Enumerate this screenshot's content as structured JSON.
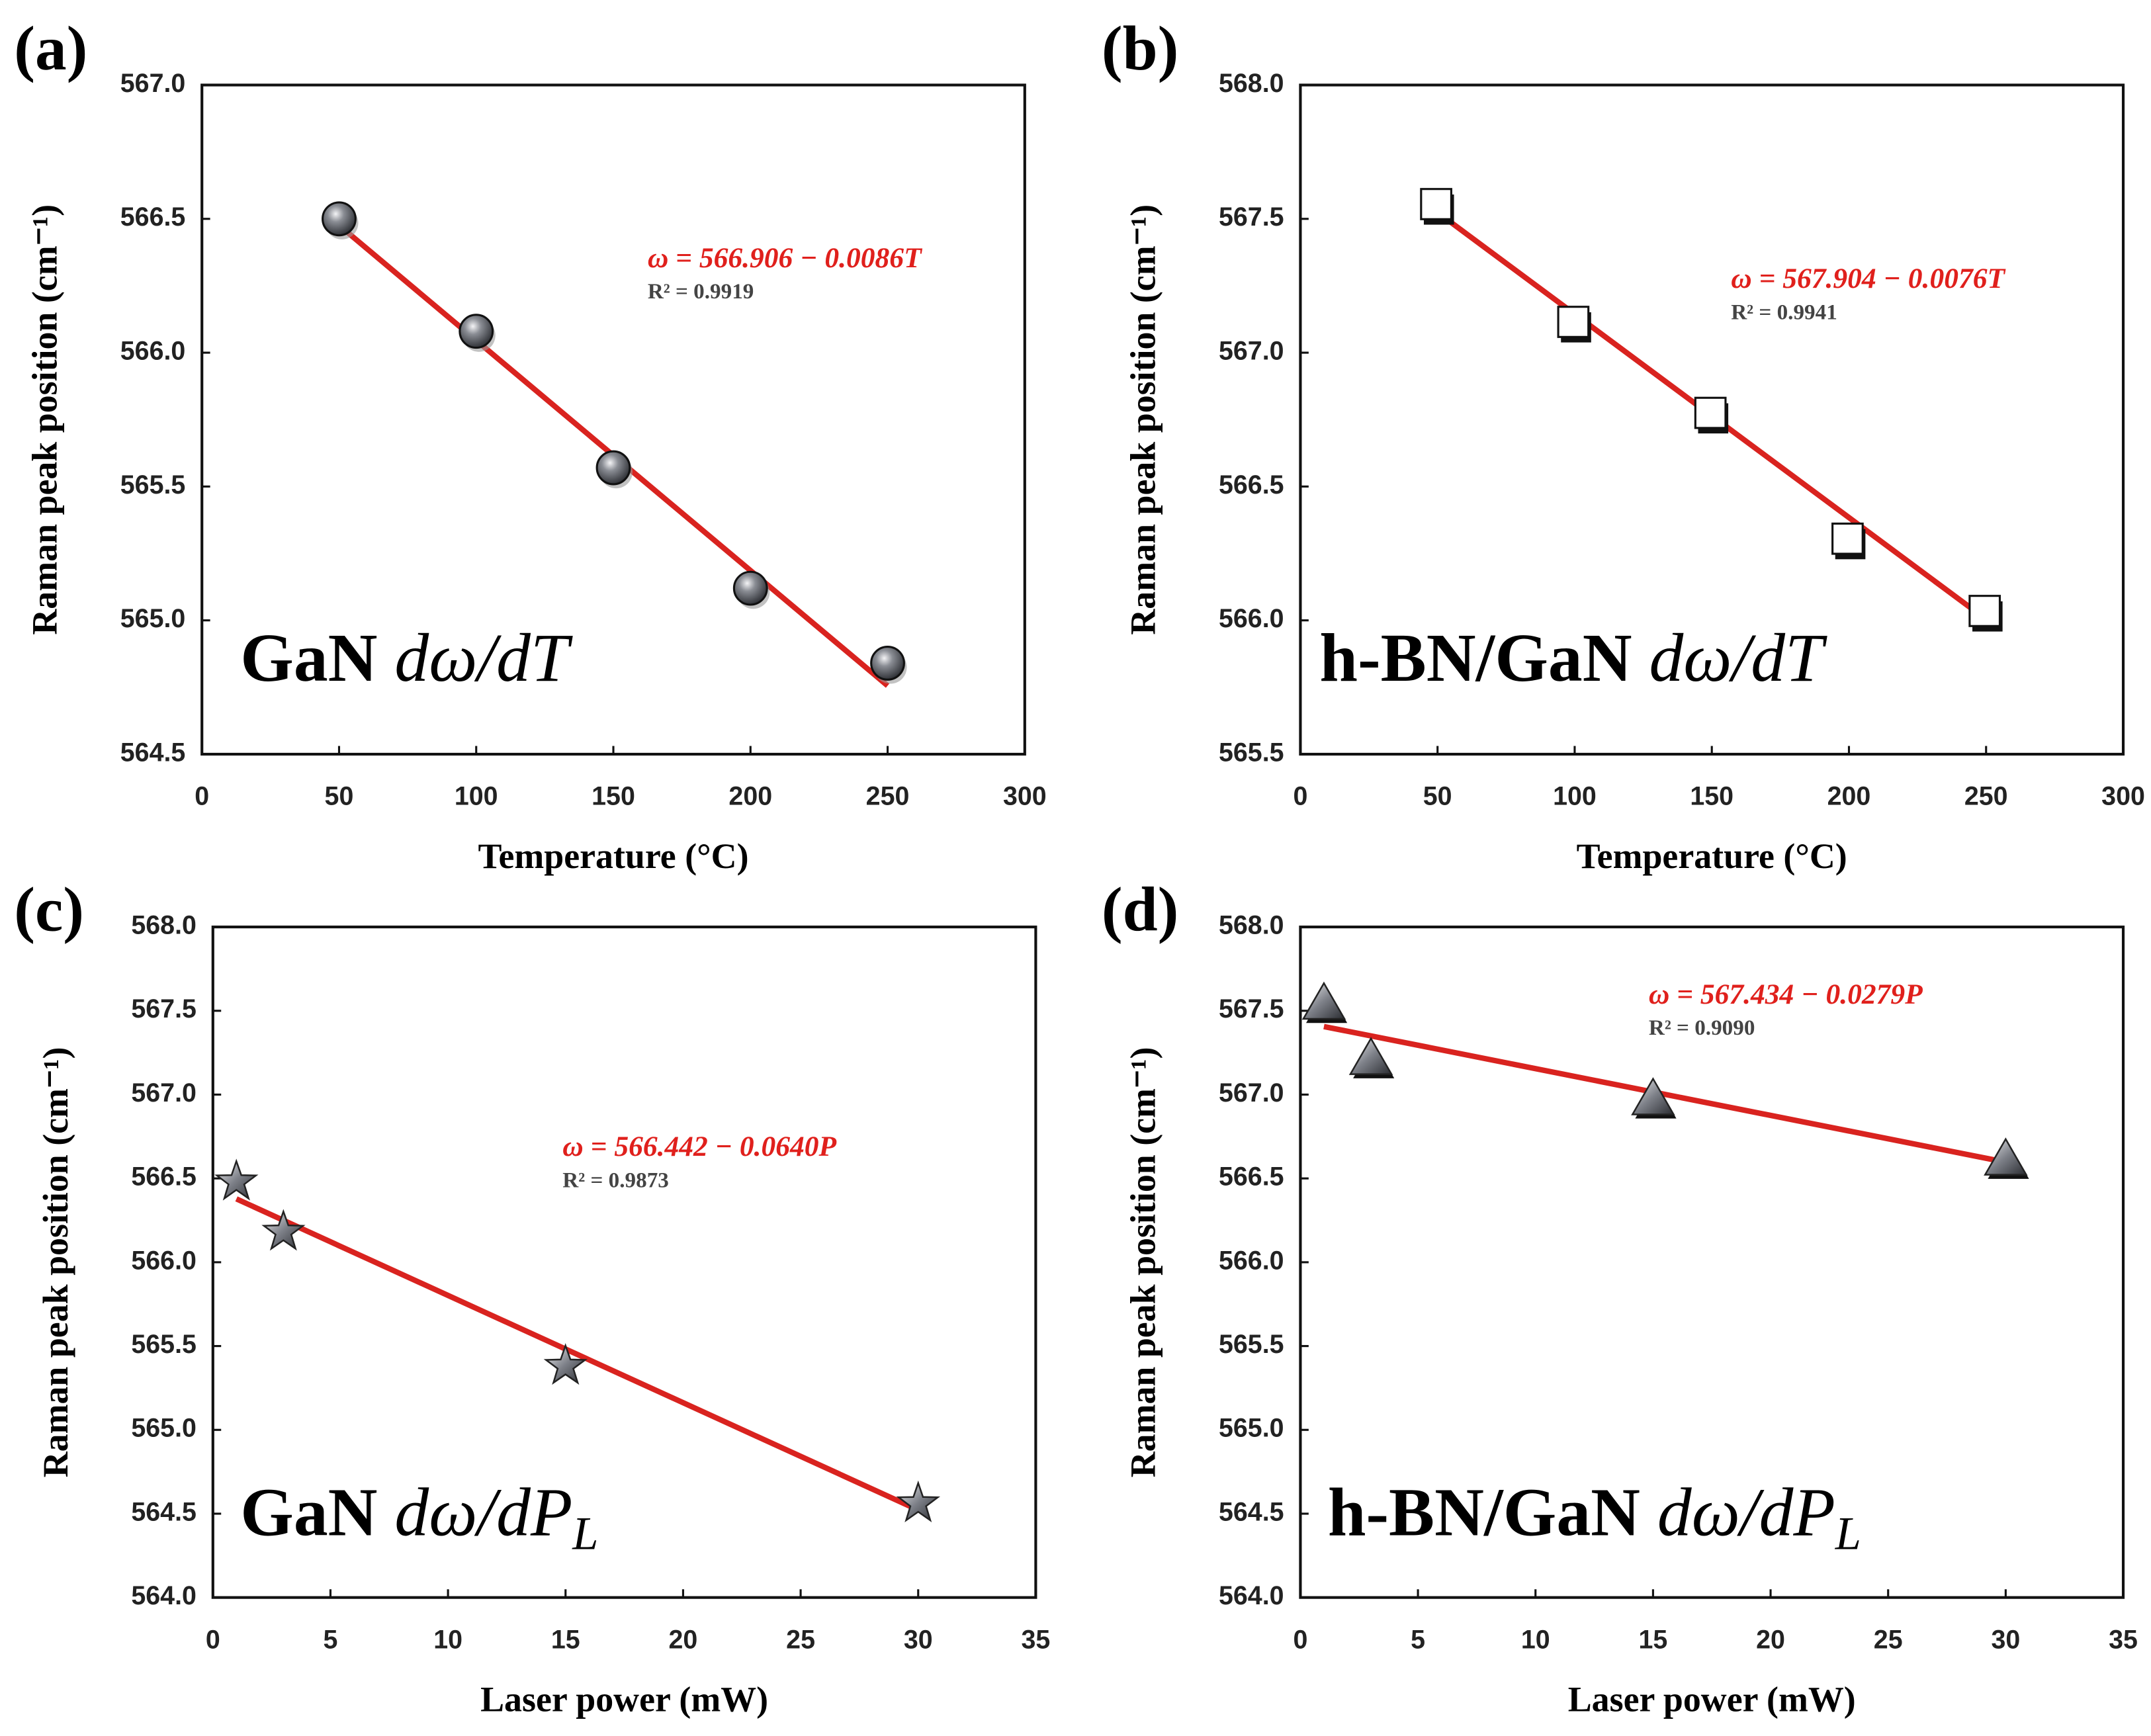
{
  "chart_data": [
    {
      "type": "scatter",
      "panel_label": "(a)",
      "marker": "circle",
      "marker_color": "#6e7178",
      "line_color": "#d9231f",
      "label": {
        "text": "GaN ",
        "math": "dω/dT",
        "sub": null
      },
      "equation": "ω = 566.906 − 0.0086T",
      "r2": "R² = 0.9919",
      "x_label": "Temperature (°C)",
      "y_label": "Raman peak position (cm⁻¹)",
      "series": [
        {
          "x": [
            50,
            100,
            150,
            200,
            250
          ],
          "values": [
            566.5,
            566.08,
            565.57,
            565.12,
            564.84
          ]
        },
        {
          "x": [
            50,
            250
          ],
          "values": [
            566.476,
            564.756
          ]
        }
      ],
      "xlim": [
        0,
        300
      ],
      "xticks": [
        0,
        50,
        100,
        150,
        200,
        250,
        300
      ],
      "ylim": [
        564.5,
        567.0
      ],
      "yticks": [
        564.5,
        {
          "value": 565,
          "label": "565.0"
        },
        565.5,
        {
          "value": 566,
          "label": "566.0"
        },
        566.5,
        {
          "value": 567,
          "label": "567.0"
        }
      ]
    },
    {
      "type": "scatter",
      "panel_label": "(b)",
      "marker": "square",
      "marker_color": "#ffffff",
      "line_color": "#d9231f",
      "label": {
        "text": "h-BN/GaN ",
        "math": "dω/dT",
        "sub": null
      },
      "equation": "ω = 567.904 − 0.0076T",
      "r2": "R² = 0.9941",
      "x_label": "Temperature (°C)",
      "y_label": "Raman peak position (cm⁻¹)",
      "series": [
        {
          "x": [
            50,
            100,
            150,
            200,
            250
          ],
          "values": [
            567.55,
            567.11,
            566.77,
            566.3,
            566.03
          ]
        },
        {
          "x": [
            50,
            250
          ],
          "values": [
            567.524,
            566.004
          ]
        }
      ],
      "xlim": [
        0,
        300
      ],
      "xticks": [
        0,
        50,
        100,
        150,
        200,
        250,
        300
      ],
      "ylim": [
        565.5,
        568.0
      ],
      "yticks": [
        565.5,
        {
          "value": 566,
          "label": "566.0"
        },
        566.5,
        {
          "value": 567,
          "label": "567.0"
        },
        567.5,
        {
          "value": 568,
          "label": "568.0"
        }
      ]
    },
    {
      "type": "scatter",
      "panel_label": "(c)",
      "marker": "star",
      "marker_color": "#7a7d84",
      "line_color": "#d9231f",
      "label": {
        "text": "GaN ",
        "math": "dω/dP",
        "sub": "L"
      },
      "equation": "ω = 566.442 − 0.0640P",
      "r2": "R² = 0.9873",
      "x_label": "Laser power (mW)",
      "y_label": "Raman peak position (cm⁻¹)",
      "series": [
        {
          "x": [
            1,
            3,
            15,
            30
          ],
          "values": [
            566.48,
            566.18,
            565.38,
            564.56
          ]
        },
        {
          "x": [
            1,
            30
          ],
          "values": [
            566.378,
            564.522
          ]
        }
      ],
      "xlim": [
        0,
        35
      ],
      "xticks": [
        0,
        5,
        10,
        15,
        20,
        25,
        30,
        35
      ],
      "ylim": [
        564,
        568
      ],
      "yticks": [
        {
          "value": 564,
          "label": "564.0"
        },
        564.5,
        {
          "value": 565,
          "label": "565.0"
        },
        565.5,
        {
          "value": 566,
          "label": "566.0"
        },
        566.5,
        {
          "value": 567,
          "label": "567.0"
        },
        567.5,
        {
          "value": 568,
          "label": "568.0"
        }
      ]
    },
    {
      "type": "scatter",
      "panel_label": "(d)",
      "marker": "triangle",
      "marker_color": "#8a8d94",
      "line_color": "#d9231f",
      "label": {
        "text": "h-BN/GaN ",
        "math": "dω/dP",
        "sub": "L"
      },
      "equation": "ω = 567.434 − 0.0279P",
      "r2": "R² = 0.9090",
      "x_label": "Laser power (mW)",
      "y_label": "Raman peak position (cm⁻¹)",
      "series": [
        {
          "x": [
            1,
            3,
            15,
            30
          ],
          "values": [
            567.55,
            567.22,
            566.98,
            566.62
          ]
        },
        {
          "x": [
            1,
            30
          ],
          "values": [
            567.406,
            566.597
          ]
        }
      ],
      "xlim": [
        0,
        35
      ],
      "xticks": [
        0,
        5,
        10,
        15,
        20,
        25,
        30,
        35
      ],
      "ylim": [
        564,
        568
      ],
      "yticks": [
        {
          "value": 564,
          "label": "564.0"
        },
        564.5,
        {
          "value": 565,
          "label": "565.0"
        },
        565.5,
        {
          "value": 566,
          "label": "566.0"
        },
        566.5,
        {
          "value": 567,
          "label": "567.0"
        },
        567.5,
        {
          "value": 568,
          "label": "568.0"
        }
      ]
    }
  ]
}
